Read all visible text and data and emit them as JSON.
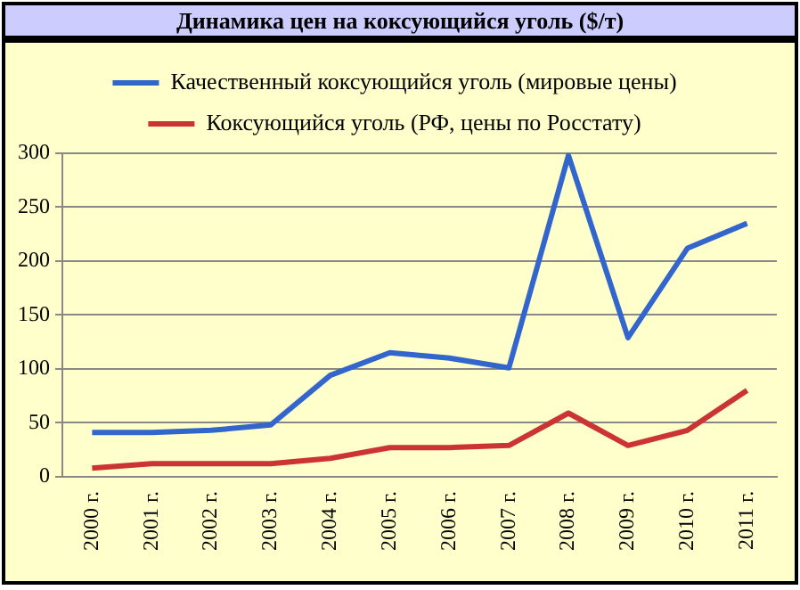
{
  "chart_data": {
    "type": "line",
    "title": "Динамика цен на коксующийся уголь ($/т)",
    "categories": [
      "2000 г.",
      "2001 г.",
      "2002 г.",
      "2003 г.",
      "2004 г.",
      "2005 г.",
      "2006 г.",
      "2007 г.",
      "2008 г.",
      "2009 г.",
      "2010 г.",
      "2011 г."
    ],
    "series": [
      {
        "name": "Качественный коксующийся уголь (мировые цены)",
        "color": "#3366cc",
        "values": [
          41,
          41,
          43,
          48,
          94,
          115,
          110,
          101,
          298,
          129,
          212,
          235
        ]
      },
      {
        "name": "Коксующийся уголь (РФ, цены по Росстату)",
        "color": "#cc3333",
        "values": [
          8,
          12,
          12,
          12,
          17,
          27,
          27,
          29,
          59,
          29,
          43,
          80
        ]
      }
    ],
    "ylim": [
      0,
      300
    ],
    "yticks": [
      0,
      50,
      100,
      150,
      200,
      250,
      300
    ],
    "grid": "y",
    "legend": "top",
    "marker": "none",
    "line_style": "solid"
  }
}
